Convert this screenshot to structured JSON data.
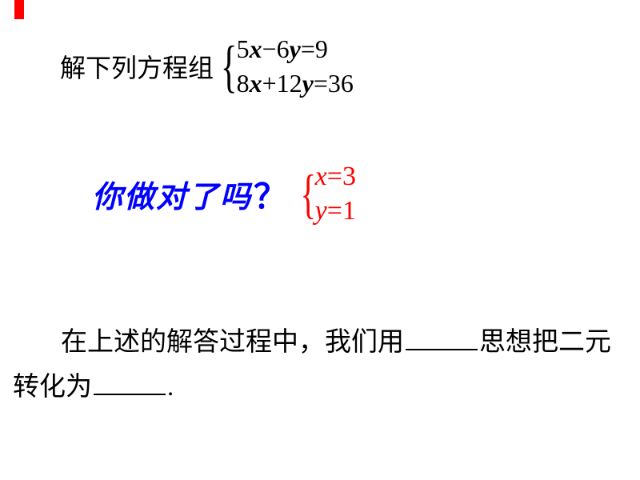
{
  "colors": {
    "red": "#ff0000",
    "blue": "#0000ff",
    "black": "#000000",
    "background": "#ffffff"
  },
  "typography": {
    "body_fontsize": 32,
    "handwriting_fontsize": 38,
    "solution_fontsize": 34,
    "para_fontsize": 33
  },
  "problem": {
    "prompt": "解下列方程组",
    "equations": {
      "eq1": {
        "lhs_coef1": "5",
        "var1": "x",
        "op": "−",
        "lhs_coef2": "6",
        "var2": "y",
        "eq": "=",
        "rhs": "9"
      },
      "eq2": {
        "lhs_coef1": "8",
        "var1": "x",
        "op": "+",
        "lhs_coef2": "12",
        "var2": "y",
        "eq": "=",
        "rhs": "36"
      }
    }
  },
  "check": {
    "text": "你做对了吗",
    "qmark": "？",
    "solution": {
      "s1": {
        "var": "x",
        "eq": "=",
        "val": "3"
      },
      "s2": {
        "var": "y",
        "eq": "=",
        "val": "1"
      }
    }
  },
  "paragraph": {
    "part1": "在上述的解答过程中，我们用",
    "part2": "思想把二元",
    "part3": "转化为",
    "part4": "."
  }
}
